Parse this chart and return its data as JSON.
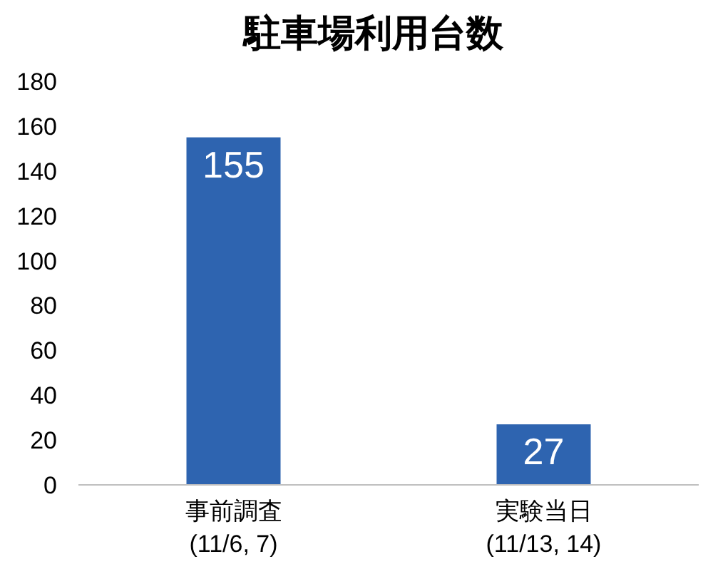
{
  "chart_data": {
    "type": "bar",
    "title": "駐車場利用台数",
    "categories": [
      "事前調査\n(11/6, 7)",
      "実験当日\n(11/13, 14)"
    ],
    "values": [
      155,
      27
    ],
    "color": "#2e64b0",
    "ylim": [
      0,
      180
    ],
    "yticks": [
      0,
      20,
      40,
      60,
      80,
      100,
      120,
      140,
      160,
      180
    ],
    "data_labels": true
  }
}
